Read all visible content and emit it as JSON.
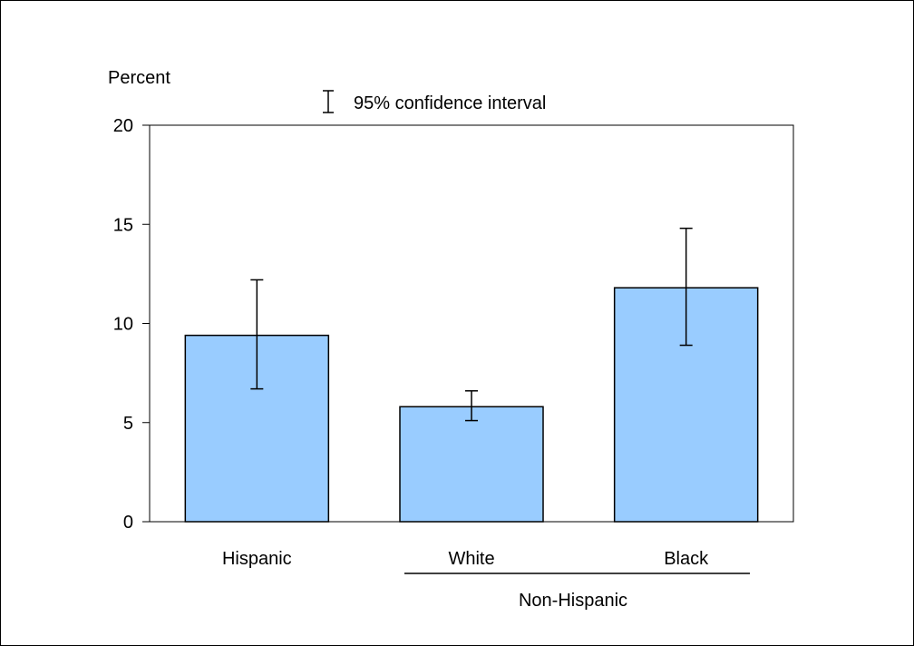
{
  "chart_data": {
    "type": "bar",
    "ylabel": "Percent",
    "legend_label": "95% confidence interval",
    "legend_position": "top-center",
    "ylim": [
      0,
      20
    ],
    "yticks": [
      0,
      5,
      10,
      15,
      20
    ],
    "categories": [
      "Hispanic",
      "White",
      "Black"
    ],
    "values": [
      9.4,
      5.8,
      11.8
    ],
    "ci_lower": [
      6.7,
      5.1,
      8.9
    ],
    "ci_upper": [
      12.2,
      6.6,
      14.8
    ],
    "group_label": "Non-Hispanic",
    "group_members": [
      "White",
      "Black"
    ],
    "bar_color": "#99ccff",
    "grid": false
  }
}
